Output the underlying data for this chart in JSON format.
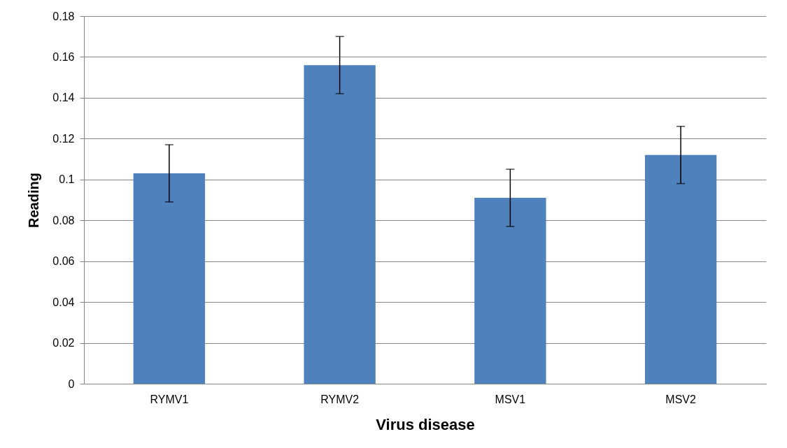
{
  "chart_data": {
    "type": "bar",
    "xlabel": "Virus disease",
    "ylabel": "Reading",
    "categories": [
      "RYMV1",
      "RYMV2",
      "MSV1",
      "MSV2"
    ],
    "values": [
      0.103,
      0.156,
      0.091,
      0.112
    ],
    "errors": [
      0.014,
      0.014,
      0.014,
      0.014
    ],
    "color": "#4f81bd",
    "ylim": [
      0,
      0.18
    ],
    "yticks": [
      0,
      0.02,
      0.04,
      0.06,
      0.08,
      0.1,
      0.12,
      0.14,
      0.16,
      0.18
    ],
    "grid": "y"
  }
}
